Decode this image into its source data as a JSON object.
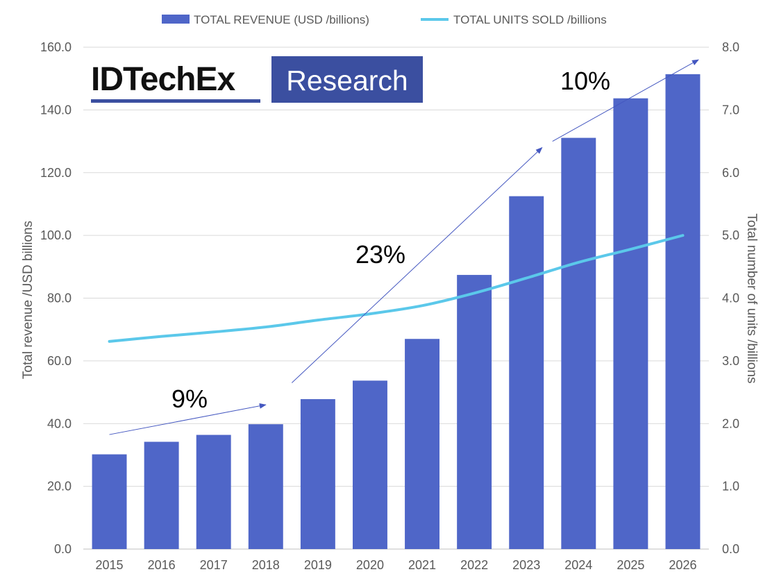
{
  "logo": {
    "main": "IDTechEx",
    "sub": "Research",
    "sub_bg": "#3b4fa0"
  },
  "chart_data": {
    "type": "bar",
    "categories": [
      "2015",
      "2016",
      "2017",
      "2018",
      "2019",
      "2020",
      "2021",
      "2022",
      "2023",
      "2024",
      "2025",
      "2026"
    ],
    "series": [
      {
        "name": "TOTAL REVENUE (USD /billions)",
        "type": "bar",
        "axis": "left",
        "color": "#4f66c8",
        "values": [
          30.2,
          34.2,
          36.4,
          39.8,
          47.8,
          53.7,
          67.0,
          87.4,
          112.5,
          131.1,
          143.7,
          151.4
        ]
      },
      {
        "name": "TOTAL UNITS SOLD /billions",
        "type": "line",
        "axis": "right",
        "color": "#5bc8ea",
        "values": [
          3.31,
          3.39,
          3.46,
          3.54,
          3.65,
          3.75,
          3.88,
          4.08,
          4.32,
          4.57,
          4.78,
          5.0
        ]
      }
    ],
    "ylabel": "Total revenue /USD billions",
    "y2label": "Total number of units /billions",
    "ylim": [
      0,
      160
    ],
    "y2lim": [
      0,
      8
    ],
    "yticks": [
      "0.0",
      "20.0",
      "40.0",
      "60.0",
      "80.0",
      "100.0",
      "120.0",
      "140.0",
      "160.0"
    ],
    "y2ticks": [
      "0.0",
      "1.0",
      "2.0",
      "3.0",
      "4.0",
      "5.0",
      "6.0",
      "7.0",
      "8.0"
    ],
    "grid": true,
    "legend_position": "top-center",
    "annotations": [
      {
        "label": "9%",
        "arrow_from": {
          "x": 2015,
          "y": 36.5
        },
        "arrow_to": {
          "x": 2018,
          "y": 46
        }
      },
      {
        "label": "23%",
        "arrow_from": {
          "x": 2018.5,
          "y": 53
        },
        "arrow_to": {
          "x": 2023.3,
          "y": 128
        }
      },
      {
        "label": "10%",
        "arrow_from": {
          "x": 2023.5,
          "y": 130
        },
        "arrow_to": {
          "x": 2026.3,
          "y": 156
        }
      }
    ]
  }
}
